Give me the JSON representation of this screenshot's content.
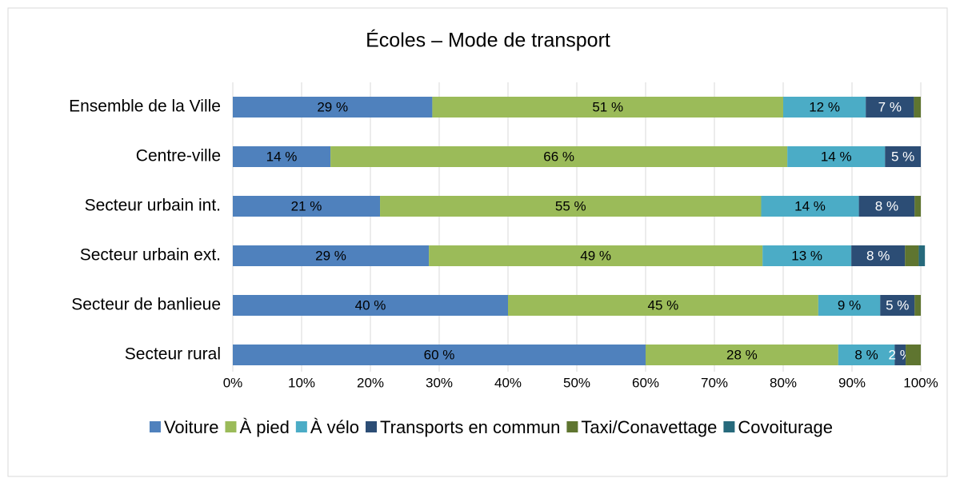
{
  "chart_data": {
    "type": "stacked_barh",
    "title": "Écoles – Mode de transport",
    "categories": [
      "Ensemble de la Ville",
      "Centre-ville",
      "Secteur urbain int.",
      "Secteur urbain ext.",
      "Secteur de banlieue",
      "Secteur rural"
    ],
    "series": [
      {
        "name": "Voiture",
        "color": "#4f81bd",
        "values": [
          29,
          14.2,
          21.4,
          28.5,
          40,
          60
        ],
        "value_labels": [
          "29 %",
          "14 %",
          "21 %",
          "29 %",
          "40 %",
          "60 %"
        ],
        "label_color": "#000000"
      },
      {
        "name": "À pied",
        "color": "#9bbb59",
        "values": [
          51,
          66.4,
          55.4,
          48.5,
          45.1,
          28
        ],
        "value_labels": [
          "51 %",
          "66 %",
          "55 %",
          "49 %",
          "45 %",
          "28 %"
        ],
        "label_color": "#000000"
      },
      {
        "name": "À vélo",
        "color": "#4bacc6",
        "values": [
          12,
          14.2,
          14.2,
          12.9,
          9,
          8.2
        ],
        "value_labels": [
          "12 %",
          "14 %",
          "14 %",
          "13 %",
          "9 %",
          "8 %"
        ],
        "label_color": "#000000"
      },
      {
        "name": "Transports en commun",
        "color": "#2c4d75",
        "values": [
          7,
          5.2,
          8.1,
          7.8,
          5,
          1.6
        ],
        "value_labels": [
          "7 %",
          "5 %",
          "8 %",
          "8 %",
          "5 %",
          "2 %"
        ],
        "label_color": "#ffffff"
      },
      {
        "name": "Taxi/Conavettage",
        "color": "#5f7530",
        "values": [
          1,
          0,
          0.9,
          2,
          0.9,
          2.2
        ],
        "value_labels": [
          null,
          null,
          null,
          null,
          null,
          null
        ],
        "label_color": "#ffffff"
      },
      {
        "name": "Covoiturage",
        "color": "#276a7c",
        "values": [
          0,
          0,
          0,
          0.9,
          0,
          0
        ],
        "value_labels": [
          null,
          null,
          null,
          null,
          null,
          null
        ],
        "label_color": "#ffffff"
      }
    ],
    "xlim": [
      0,
      100
    ],
    "xticks": [
      {
        "value": 0,
        "label": "0%"
      },
      {
        "value": 10,
        "label": "10%"
      },
      {
        "value": 20,
        "label": "20%"
      },
      {
        "value": 30,
        "label": "30%"
      },
      {
        "value": 40,
        "label": "40%"
      },
      {
        "value": 50,
        "label": "50%"
      },
      {
        "value": 60,
        "label": "60%"
      },
      {
        "value": 70,
        "label": "70%"
      },
      {
        "value": 80,
        "label": "80%"
      },
      {
        "value": 90,
        "label": "90%"
      },
      {
        "value": 100,
        "label": "100%"
      }
    ],
    "grid": true,
    "legend": "bottom"
  }
}
